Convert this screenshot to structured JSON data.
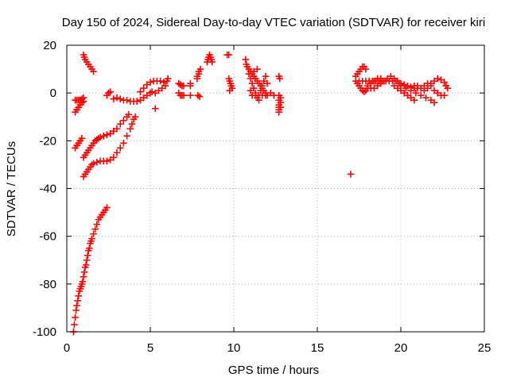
{
  "chart_data": {
    "type": "scatter",
    "title": "Day 150 of 2024, Sidereal Day-to-day VTEC variation (SDTVAR) for receiver kiri",
    "xlabel": "GPS time / hours",
    "ylabel": "SDTVAR / TECUs",
    "xlim": [
      0,
      25
    ],
    "ylim": [
      -100,
      20
    ],
    "xticks": [
      0,
      5,
      10,
      15,
      20,
      25
    ],
    "yticks": [
      -100,
      -80,
      -60,
      -40,
      -20,
      0,
      20
    ],
    "grid": true,
    "legend": "none",
    "marker": "plus",
    "color": "#ff0000",
    "series": [
      {
        "points": [
          [
            0.4,
            -100
          ],
          [
            0.45,
            -97
          ],
          [
            0.5,
            -94
          ],
          [
            0.55,
            -91
          ],
          [
            0.6,
            -89
          ],
          [
            0.65,
            -87
          ],
          [
            0.7,
            -85
          ],
          [
            0.75,
            -83
          ],
          [
            0.8,
            -82
          ],
          [
            0.85,
            -81
          ],
          [
            0.9,
            -80
          ],
          [
            0.95,
            -79
          ],
          [
            1.0,
            -77
          ],
          [
            1.05,
            -75
          ],
          [
            1.1,
            -73
          ],
          [
            1.15,
            -72
          ],
          [
            1.2,
            -70
          ],
          [
            1.25,
            -68
          ],
          [
            1.3,
            -66
          ],
          [
            1.35,
            -65
          ],
          [
            1.4,
            -63
          ],
          [
            1.45,
            -62
          ],
          [
            1.5,
            -61
          ],
          [
            1.6,
            -59
          ],
          [
            1.7,
            -57
          ],
          [
            1.8,
            -55
          ],
          [
            1.9,
            -53
          ],
          [
            2.0,
            -52
          ],
          [
            2.1,
            -51
          ],
          [
            2.2,
            -50
          ],
          [
            2.3,
            -49
          ],
          [
            2.4,
            -48
          ],
          [
            0.5,
            -3
          ],
          [
            0.6,
            -3
          ],
          [
            0.7,
            -3
          ],
          [
            0.8,
            -3
          ],
          [
            0.9,
            -2.5
          ],
          [
            1.0,
            -2
          ],
          [
            0.5,
            -8
          ],
          [
            0.6,
            -7
          ],
          [
            0.7,
            -6
          ],
          [
            0.8,
            -5
          ],
          [
            0.9,
            -4
          ],
          [
            1.0,
            -3.5
          ],
          [
            0.5,
            -23
          ],
          [
            0.6,
            -22
          ],
          [
            0.7,
            -21
          ],
          [
            0.8,
            -20
          ],
          [
            0.9,
            -19
          ],
          [
            1.0,
            16
          ],
          [
            1.05,
            15
          ],
          [
            1.1,
            14
          ],
          [
            1.2,
            13
          ],
          [
            1.3,
            12
          ],
          [
            1.4,
            11
          ],
          [
            1.5,
            10
          ],
          [
            1.6,
            9
          ],
          [
            1.0,
            -27
          ],
          [
            1.1,
            -26
          ],
          [
            1.2,
            -25
          ],
          [
            1.3,
            -24
          ],
          [
            1.4,
            -23
          ],
          [
            1.5,
            -22
          ],
          [
            1.6,
            -21
          ],
          [
            1.7,
            -20
          ],
          [
            1.8,
            -19.5
          ],
          [
            1.9,
            -19
          ],
          [
            2.0,
            -18.5
          ],
          [
            2.2,
            -18
          ],
          [
            2.4,
            -17.5
          ],
          [
            2.6,
            -17
          ],
          [
            2.8,
            -16
          ],
          [
            3.0,
            -15
          ],
          [
            3.2,
            -13
          ],
          [
            3.4,
            -11.5
          ],
          [
            3.6,
            -10
          ],
          [
            3.7,
            -9
          ],
          [
            1.0,
            -35
          ],
          [
            1.1,
            -34
          ],
          [
            1.2,
            -33
          ],
          [
            1.3,
            -32
          ],
          [
            1.4,
            -31
          ],
          [
            1.5,
            -30
          ],
          [
            1.6,
            -29.5
          ],
          [
            1.8,
            -29
          ],
          [
            2.0,
            -28.5
          ],
          [
            2.2,
            -28.5
          ],
          [
            2.4,
            -28.5
          ],
          [
            2.6,
            -28
          ],
          [
            2.8,
            -27
          ],
          [
            3.0,
            -25
          ],
          [
            3.2,
            -23
          ],
          [
            3.4,
            -21
          ],
          [
            3.6,
            -18
          ],
          [
            3.8,
            -15
          ],
          [
            3.9,
            -13
          ],
          [
            4.0,
            -11
          ],
          [
            4.1,
            -10
          ],
          [
            2.8,
            -2.5
          ],
          [
            3.0,
            -2
          ],
          [
            3.2,
            -2.5
          ],
          [
            3.4,
            -3
          ],
          [
            3.6,
            -3
          ],
          [
            3.8,
            -3.5
          ],
          [
            4.0,
            -3.5
          ],
          [
            4.2,
            -3.5
          ],
          [
            4.4,
            -3
          ],
          [
            4.6,
            -2
          ],
          [
            4.8,
            -1
          ],
          [
            5.0,
            0
          ],
          [
            5.1,
            0.5
          ],
          [
            2.4,
            -1
          ],
          [
            2.5,
            0
          ],
          [
            2.6,
            0.5
          ],
          [
            4.4,
            0.5
          ],
          [
            4.6,
            2
          ],
          [
            4.8,
            3.5
          ],
          [
            5.0,
            4.5
          ],
          [
            5.2,
            5
          ],
          [
            5.4,
            5
          ],
          [
            5.6,
            5
          ],
          [
            5.8,
            4.5
          ],
          [
            5.3,
            0
          ],
          [
            5.5,
            1
          ],
          [
            5.7,
            2
          ],
          [
            5.9,
            3
          ],
          [
            6.0,
            5
          ],
          [
            6.05,
            6
          ],
          [
            5.3,
            -6.5
          ],
          [
            6.7,
            4
          ],
          [
            6.8,
            3.5
          ],
          [
            6.9,
            3
          ],
          [
            7.0,
            3
          ],
          [
            7.4,
            4
          ],
          [
            7.4,
            3
          ],
          [
            6.7,
            0
          ],
          [
            6.8,
            -1
          ],
          [
            6.9,
            -1
          ],
          [
            7.0,
            -1
          ],
          [
            7.4,
            -1
          ],
          [
            7.8,
            6
          ],
          [
            7.8,
            7
          ],
          [
            7.9,
            8
          ],
          [
            7.9,
            9
          ],
          [
            8.0,
            10
          ],
          [
            7.85,
            -1
          ],
          [
            7.95,
            -1.5
          ],
          [
            8.4,
            13
          ],
          [
            8.45,
            14
          ],
          [
            8.5,
            15
          ],
          [
            8.55,
            16
          ],
          [
            8.6,
            15
          ],
          [
            8.65,
            14
          ],
          [
            8.7,
            13
          ],
          [
            9.6,
            16
          ],
          [
            9.7,
            16
          ],
          [
            9.7,
            6
          ],
          [
            9.75,
            5
          ],
          [
            9.8,
            4
          ],
          [
            9.85,
            3
          ],
          [
            9.9,
            2
          ],
          [
            9.75,
            1
          ],
          [
            10.7,
            14
          ],
          [
            10.75,
            12
          ],
          [
            10.8,
            11
          ],
          [
            10.9,
            10
          ],
          [
            11.0,
            9
          ],
          [
            11.1,
            8
          ],
          [
            11.2,
            7
          ],
          [
            11.3,
            6
          ],
          [
            11.4,
            5
          ],
          [
            11.5,
            4
          ],
          [
            11.6,
            3
          ],
          [
            11.7,
            2
          ],
          [
            11.8,
            1
          ],
          [
            11.9,
            0
          ],
          [
            10.9,
            8
          ],
          [
            11.0,
            6
          ],
          [
            11.1,
            4
          ],
          [
            11.2,
            2
          ],
          [
            11.3,
            0
          ],
          [
            11.4,
            -2
          ],
          [
            11.5,
            -3
          ],
          [
            11.6,
            1
          ],
          [
            11.7,
            3
          ],
          [
            11.8,
            5
          ],
          [
            11.9,
            7
          ],
          [
            12.0,
            4
          ],
          [
            11.2,
            9
          ],
          [
            11.4,
            10
          ],
          [
            11.0,
            1
          ],
          [
            11.1,
            -1
          ],
          [
            11.3,
            -1
          ],
          [
            11.5,
            -1
          ],
          [
            11.7,
            -1
          ],
          [
            11.9,
            -1
          ],
          [
            12.0,
            -1
          ],
          [
            12.2,
            0
          ],
          [
            12.4,
            -1
          ],
          [
            12.7,
            7
          ],
          [
            12.75,
            6
          ],
          [
            12.7,
            -1
          ],
          [
            12.7,
            -3
          ],
          [
            12.7,
            -5
          ],
          [
            12.7,
            -6
          ],
          [
            12.7,
            -7
          ],
          [
            12.7,
            -8
          ],
          [
            12.8,
            -2
          ],
          [
            12.8,
            -4
          ],
          [
            12.8,
            -6
          ],
          [
            17.0,
            -34
          ],
          [
            17.3,
            7
          ],
          [
            17.4,
            8
          ],
          [
            17.5,
            9
          ],
          [
            17.6,
            10
          ],
          [
            17.7,
            11
          ],
          [
            17.8,
            11
          ],
          [
            17.9,
            10
          ],
          [
            17.3,
            5
          ],
          [
            17.4,
            4
          ],
          [
            17.5,
            3
          ],
          [
            17.6,
            2
          ],
          [
            17.7,
            1
          ],
          [
            17.8,
            0.5
          ],
          [
            17.9,
            1
          ],
          [
            18.0,
            2
          ],
          [
            18.2,
            4
          ],
          [
            18.4,
            5
          ],
          [
            18.6,
            6
          ],
          [
            18.8,
            6
          ],
          [
            19.0,
            5
          ],
          [
            17.5,
            5
          ],
          [
            17.7,
            5
          ],
          [
            17.9,
            5
          ],
          [
            18.1,
            5
          ],
          [
            18.3,
            5
          ],
          [
            18.5,
            5
          ],
          [
            18.7,
            5
          ],
          [
            18.9,
            5
          ],
          [
            19.1,
            5
          ],
          [
            19.3,
            5
          ],
          [
            19.5,
            5
          ],
          [
            19.7,
            5
          ],
          [
            19.9,
            4
          ],
          [
            18.0,
            3
          ],
          [
            18.2,
            2
          ],
          [
            18.4,
            2
          ],
          [
            18.6,
            3
          ],
          [
            18.8,
            4
          ],
          [
            19.2,
            6
          ],
          [
            19.4,
            7
          ],
          [
            19.6,
            6
          ],
          [
            19.8,
            5
          ],
          [
            20.0,
            4
          ],
          [
            20.2,
            3.5
          ],
          [
            20.4,
            3
          ],
          [
            20.6,
            2.5
          ],
          [
            20.8,
            2
          ],
          [
            21.0,
            2
          ],
          [
            19.6,
            3
          ],
          [
            19.8,
            2
          ],
          [
            20.0,
            1
          ],
          [
            20.2,
            0
          ],
          [
            20.4,
            -1
          ],
          [
            20.6,
            -2
          ],
          [
            20.8,
            -3
          ],
          [
            20.0,
            3
          ],
          [
            20.3,
            2
          ],
          [
            20.6,
            1
          ],
          [
            20.9,
            0
          ],
          [
            21.2,
            -1
          ],
          [
            21.5,
            -2
          ],
          [
            21.8,
            -3
          ],
          [
            22.0,
            -4
          ],
          [
            20.8,
            3
          ],
          [
            21.0,
            3
          ],
          [
            21.2,
            2
          ],
          [
            21.4,
            1
          ],
          [
            21.6,
            2
          ],
          [
            21.8,
            4
          ],
          [
            22.0,
            5
          ],
          [
            22.2,
            6
          ],
          [
            22.4,
            5.5
          ],
          [
            22.6,
            4.5
          ],
          [
            22.7,
            3
          ],
          [
            21.4,
            3
          ],
          [
            21.6,
            4
          ],
          [
            21.8,
            3
          ],
          [
            22.0,
            1
          ],
          [
            22.2,
            0
          ],
          [
            22.4,
            -1
          ],
          [
            22.6,
            -1
          ],
          [
            22.8,
            2
          ]
        ]
      }
    ]
  }
}
